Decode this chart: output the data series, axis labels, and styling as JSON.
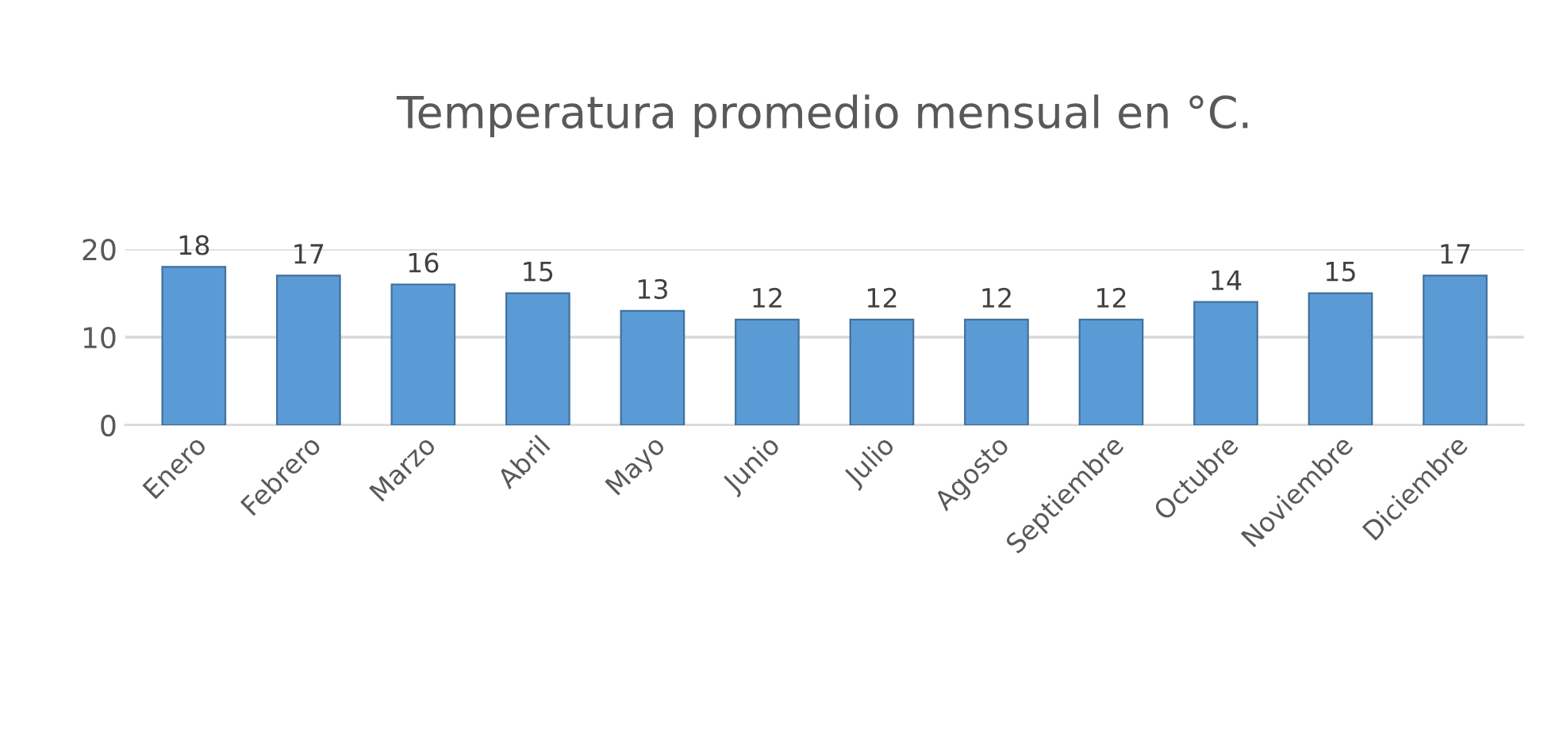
{
  "chart_data": {
    "type": "bar",
    "title": "Temperatura promedio mensual en °C.",
    "categories": [
      "Enero",
      "Febrero",
      "Marzo",
      "Abril",
      "Mayo",
      "Junio",
      "Julio",
      "Agosto",
      "Septiembre",
      "Octubre",
      "Noviembre",
      "Diciembre"
    ],
    "values": [
      18,
      17,
      16,
      15,
      13,
      12,
      12,
      12,
      12,
      14,
      15,
      17
    ],
    "color": "#5b9bd5",
    "ylim": [
      0,
      20
    ],
    "yticks": [
      0,
      10,
      20
    ],
    "grid": "y",
    "data_labels": true
  }
}
